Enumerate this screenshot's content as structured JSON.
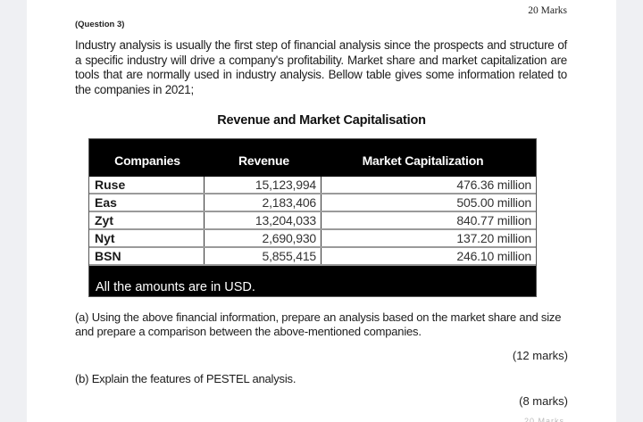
{
  "header": {
    "total_marks": "20 Marks",
    "question_number": "(Question 3)"
  },
  "intro_paragraph": "Industry analysis is usually the first step of financial analysis since the prospects and structure of a specific industry will drive a company's profitability. Market share and market capitalization are tools that are normally used in industry analysis. Bellow table gives some information related to the companies in 2021;",
  "table": {
    "title": "Revenue and Market Capitalisation",
    "columns": [
      "Companies",
      "Revenue",
      "Market Capitalization"
    ],
    "rows": [
      {
        "company": "Ruse",
        "revenue": "15,123,994",
        "market_cap": "476.36 million"
      },
      {
        "company": "Eas",
        "revenue": "2,183,406",
        "market_cap": "505.00 million"
      },
      {
        "company": "Zyt",
        "revenue": "13,204,033",
        "market_cap": "840.77 million"
      },
      {
        "company": "Nyt",
        "revenue": "2,690,930",
        "market_cap": "137.20 million"
      },
      {
        "company": "BSN",
        "revenue": "5,855,415",
        "market_cap": "246.10 million"
      }
    ],
    "footnote": "All the amounts are in USD."
  },
  "questions": {
    "a": {
      "text": "(a) Using the above financial information, prepare an analysis based on the market share and size and prepare a comparison between the above-mentioned companies.",
      "marks": "(12 marks)"
    },
    "b": {
      "text": "(b) Explain the features of PESTEL analysis.",
      "marks": "(8 marks)"
    }
  },
  "cut_off_text": "20 Marks"
}
